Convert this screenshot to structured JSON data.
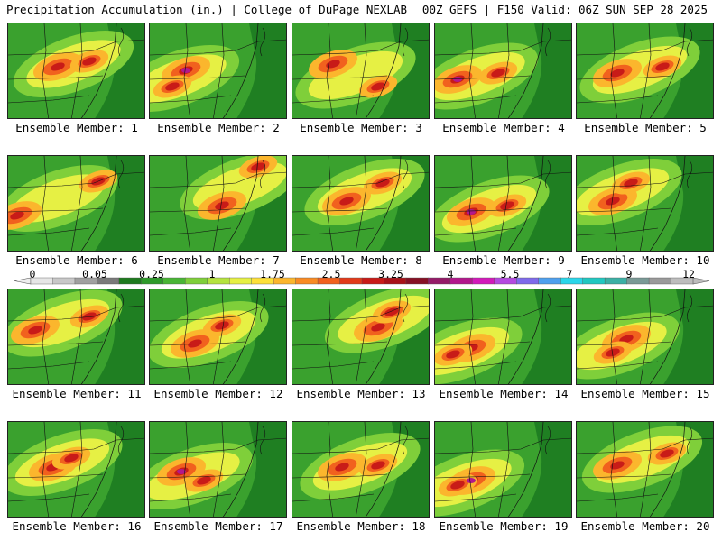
{
  "header": {
    "title": "Precipitation Accumulation (in.) | College of DuPage NEXLAB",
    "run_info": "00Z GEFS | F150 Valid: 06Z SUN SEP 28 2025"
  },
  "legend": {
    "labels": [
      "0",
      "0.05",
      "0.25",
      "1",
      "1.75",
      "2.5",
      "3.25",
      "4",
      "5.5",
      "7",
      "9",
      "12"
    ],
    "colors": [
      "#e6e6e6",
      "#c8c8c8",
      "#a0a0a0",
      "#7a7a7a",
      "#1e7a1e",
      "#2e9a2a",
      "#49b535",
      "#7fcf3a",
      "#b5e33f",
      "#e6f044",
      "#fde03a",
      "#fbb62d",
      "#f98b24",
      "#f1611e",
      "#e23a1a",
      "#c81b18",
      "#a81218",
      "#861024",
      "#941b68",
      "#b2188c",
      "#d21aba",
      "#b44ae0",
      "#7f6aeb",
      "#4fa0ee",
      "#2ad6ea",
      "#21c8c1",
      "#3bb0a5",
      "#7a9a96",
      "#9a9a9a",
      "#bdbdbd"
    ]
  },
  "members": [
    {
      "label": "Ensemble Member: 1"
    },
    {
      "label": "Ensemble Member: 2"
    },
    {
      "label": "Ensemble Member: 3"
    },
    {
      "label": "Ensemble Member: 4"
    },
    {
      "label": "Ensemble Member: 5"
    },
    {
      "label": "Ensemble Member: 6"
    },
    {
      "label": "Ensemble Member: 7"
    },
    {
      "label": "Ensemble Member: 8"
    },
    {
      "label": "Ensemble Member: 9"
    },
    {
      "label": "Ensemble Member: 10"
    },
    {
      "label": "Ensemble Member: 11"
    },
    {
      "label": "Ensemble Member: 12"
    },
    {
      "label": "Ensemble Member: 13"
    },
    {
      "label": "Ensemble Member: 14"
    },
    {
      "label": "Ensemble Member: 15"
    },
    {
      "label": "Ensemble Member: 16"
    },
    {
      "label": "Ensemble Member: 17"
    },
    {
      "label": "Ensemble Member: 18"
    },
    {
      "label": "Ensemble Member: 19"
    },
    {
      "label": "Ensemble Member: 20"
    }
  ]
}
